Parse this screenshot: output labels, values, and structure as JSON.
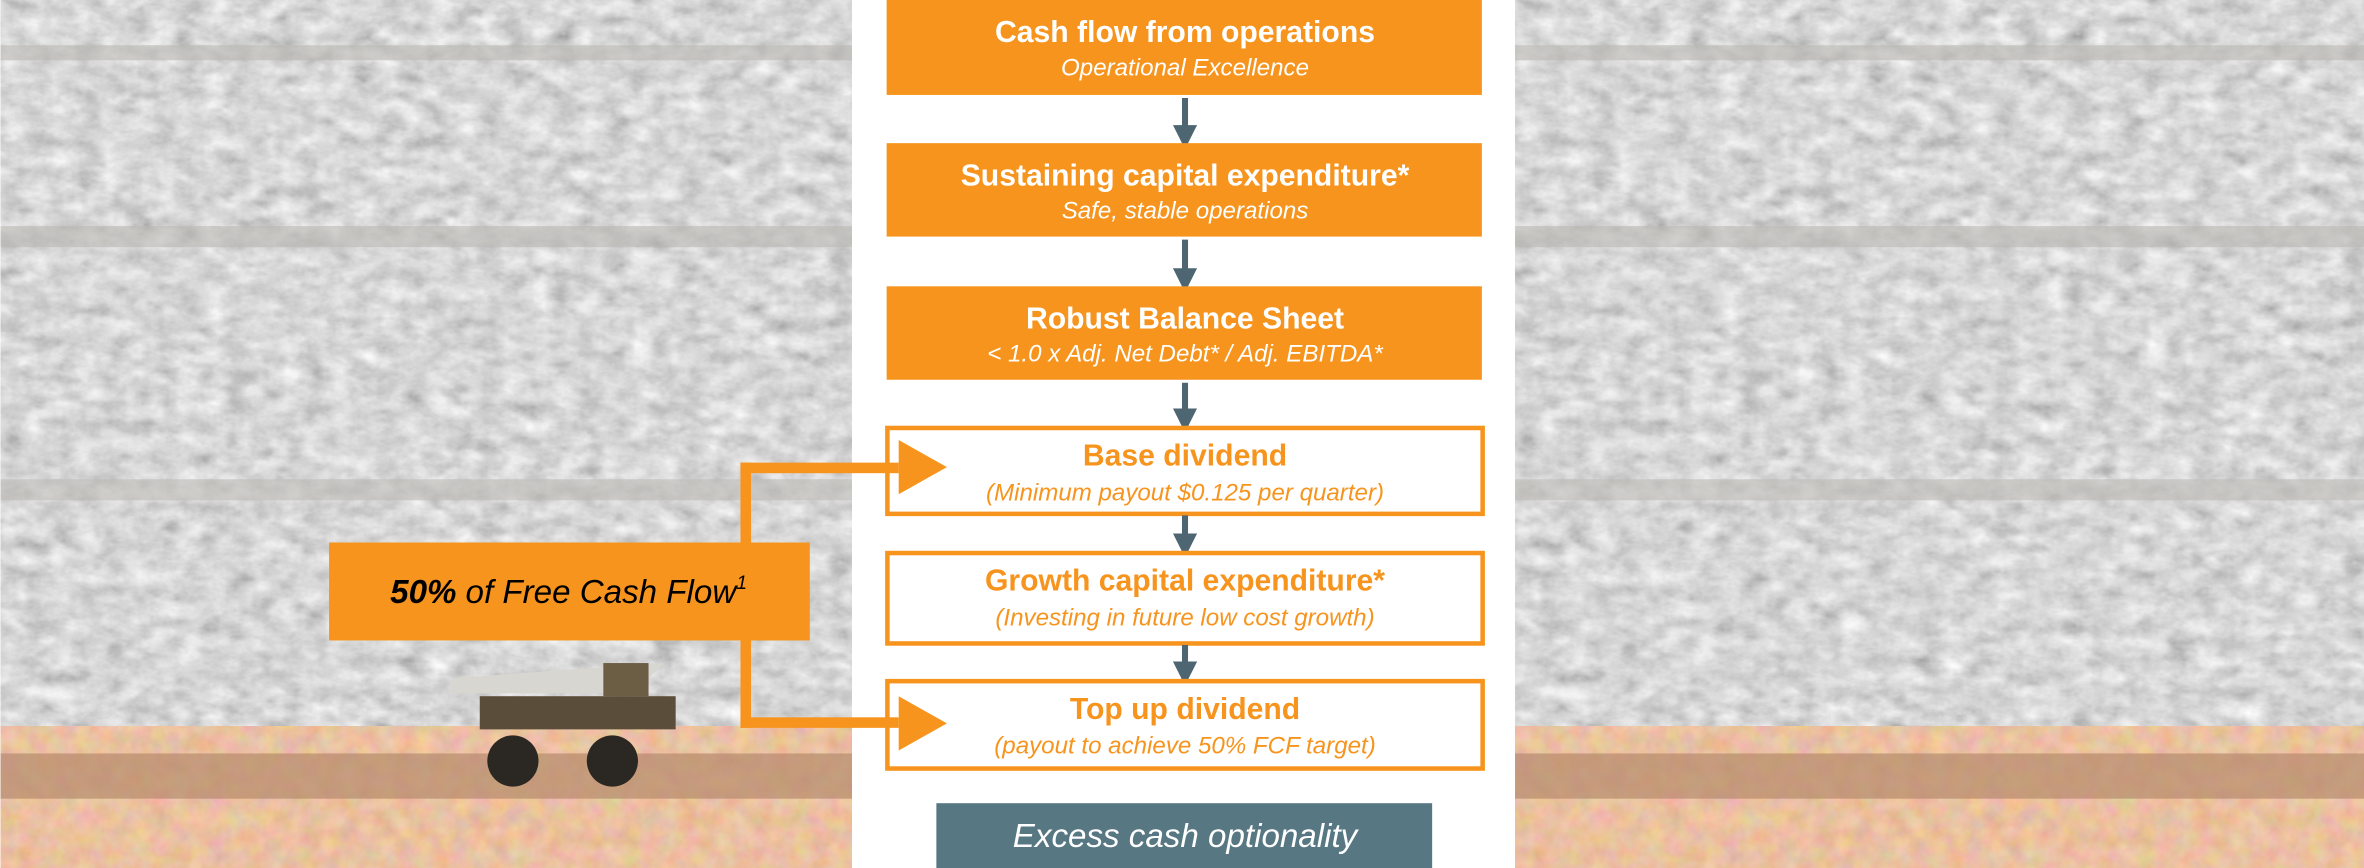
{
  "boxes": [
    {
      "title": "Cash flow from operations",
      "subtitle": "Operational Excellence"
    },
    {
      "title": "Sustaining capital expenditure*",
      "subtitle": "Safe, stable operations"
    },
    {
      "title": "Robust Balance Sheet",
      "subtitle": "< 1.0 x Adj. Net Debt* / Adj. EBITDA*"
    },
    {
      "title": "Base dividend",
      "subtitle": "(Minimum payout $0.125 per quarter)"
    },
    {
      "title": "Growth capital expenditure*",
      "subtitle": "(Investing in future low cost growth)"
    },
    {
      "title": "Top up dividend",
      "subtitle": "(payout to achieve 50% FCF target)"
    }
  ],
  "callout": {
    "bold": "50%",
    "text": "of Free Cash Flow",
    "superscript": "1"
  },
  "footer": "Excess cash optionality"
}
